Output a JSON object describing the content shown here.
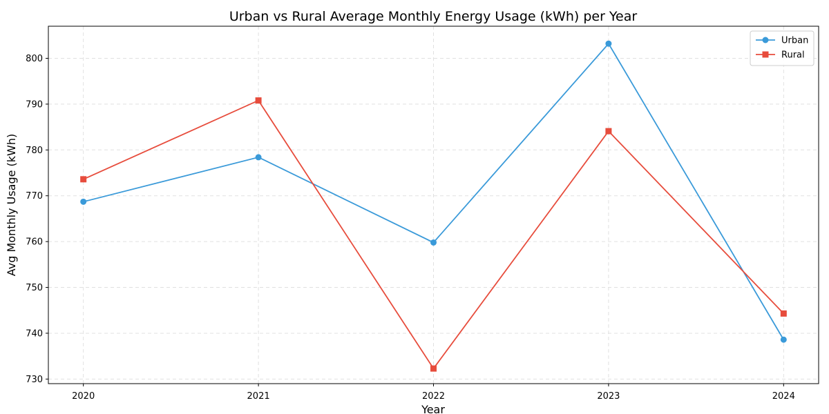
{
  "chart_data": {
    "type": "line",
    "title": "Urban vs Rural Average Monthly Energy Usage (kWh) per Year",
    "xlabel": "Year",
    "ylabel": "Avg Monthly Usage (kWh)",
    "categories": [
      "2020",
      "2021",
      "2022",
      "2023",
      "2024"
    ],
    "x": [
      2020,
      2021,
      2022,
      2023,
      2024
    ],
    "xlim": [
      2019.8,
      2024.2
    ],
    "ylim": [
      729,
      807
    ],
    "yticks": [
      730,
      740,
      750,
      760,
      770,
      780,
      790,
      800
    ],
    "grid": true,
    "legend_position": "top-right",
    "series": [
      {
        "name": "Urban",
        "color": "#3a9ad9",
        "marker": "circle",
        "values": [
          768.7,
          778.4,
          759.8,
          803.2,
          738.6
        ]
      },
      {
        "name": "Rural",
        "color": "#e74c3c",
        "marker": "square",
        "values": [
          773.6,
          790.8,
          732.3,
          784.1,
          744.3
        ]
      }
    ]
  }
}
